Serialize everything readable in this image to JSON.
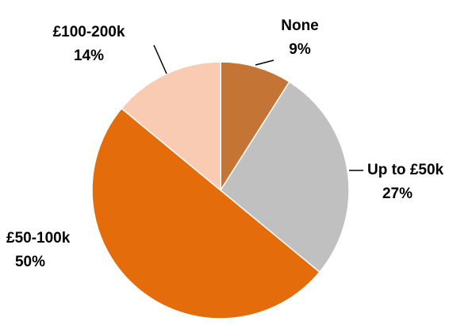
{
  "chart_data": {
    "type": "pie",
    "categories": [
      "None",
      "Up to £50k",
      "£50-100k",
      "£100-200k"
    ],
    "values": [
      9,
      27,
      50,
      14
    ],
    "value_labels": [
      "9%",
      "27%",
      "50%",
      "14%"
    ],
    "colors": [
      "#c47535",
      "#c0c0c0",
      "#e46c0a",
      "#f9cbb3"
    ]
  }
}
